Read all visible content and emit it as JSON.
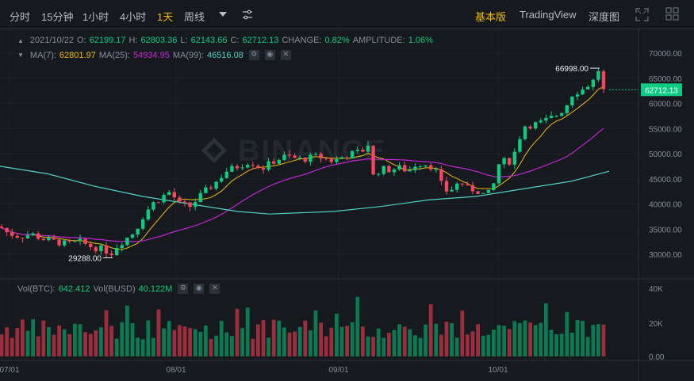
{
  "toolbar": {
    "intervals": [
      "分时",
      "15分钟",
      "1小时",
      "4小时",
      "1天",
      "周线"
    ],
    "active_interval": "1天",
    "views": [
      "基本版",
      "TradingView",
      "深度图"
    ],
    "active_view": "基本版"
  },
  "ohlc": {
    "date": "2021/10/22",
    "o_label": "O:",
    "o": "62199.17",
    "h_label": "H:",
    "h": "62803.36",
    "l_label": "L:",
    "l": "62143.66",
    "c_label": "C:",
    "c": "62712.13",
    "change_label": "CHANGE:",
    "change": "0.82%",
    "amplitude_label": "AMPLITUDE:",
    "amplitude": "1.06%"
  },
  "ma": {
    "ma7_label": "MA(7):",
    "ma7": "62801.97",
    "ma25_label": "MA(25):",
    "ma25": "54934.95",
    "ma99_label": "MA(99):",
    "ma99": "46516.08"
  },
  "vol": {
    "btc_label": "Vol(BTC):",
    "btc": "642.412",
    "busd_label": "Vol(BUSD)",
    "busd": "40.122M"
  },
  "watermark": "BINANCE",
  "price_axis": [
    "70000.00",
    "65000.00",
    "60000.00",
    "55000.00",
    "50000.00",
    "45000.00",
    "40000.00",
    "35000.00",
    "30000.00"
  ],
  "vol_axis": [
    "40K",
    "20K",
    "0.00"
  ],
  "time_axis": [
    "07/01",
    "08/01",
    "09/01",
    "10/01"
  ],
  "current_price": "62712.13",
  "high_marker": "66998.00",
  "low_marker": "29288.00",
  "colors": {
    "up": "#0ecb81",
    "down": "#f6465d",
    "ma7": "#f0b90b",
    "ma25": "#c026d3",
    "ma99": "#4fd1c5"
  }
}
